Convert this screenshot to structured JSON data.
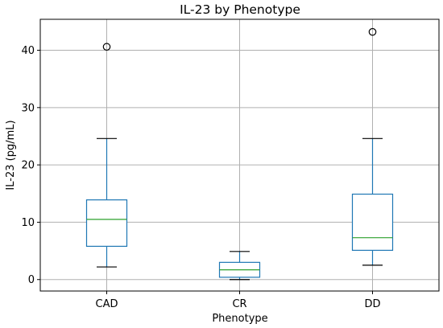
{
  "chart_data": {
    "type": "box",
    "title": "IL-23 by Phenotype",
    "xlabel": "Phenotype",
    "ylabel": "IL-23 (pg/mL)",
    "ylim": [
      -2.0,
      45.4
    ],
    "yticks": [
      0,
      10,
      20,
      30,
      40
    ],
    "grid": true,
    "categories": [
      "CAD",
      "CR",
      "DD"
    ],
    "boxes": [
      {
        "category": "CAD",
        "whisker_low": 2.2,
        "q1": 5.8,
        "median": 10.5,
        "q3": 13.9,
        "whisker_high": 24.6,
        "outliers": [
          40.6
        ]
      },
      {
        "category": "CR",
        "whisker_low": 0.0,
        "q1": 0.4,
        "median": 1.7,
        "q3": 3.0,
        "whisker_high": 4.9,
        "outliers": []
      },
      {
        "category": "DD",
        "whisker_low": 2.5,
        "q1": 5.1,
        "median": 7.3,
        "q3": 14.9,
        "whisker_high": 24.6,
        "outliers": [
          43.2
        ]
      }
    ],
    "colors": {
      "box": "#1f77b4",
      "median": "#2ca02c",
      "whisker_cap": "#000000",
      "grid": "#b0b0b0",
      "flier": "#000000"
    }
  }
}
